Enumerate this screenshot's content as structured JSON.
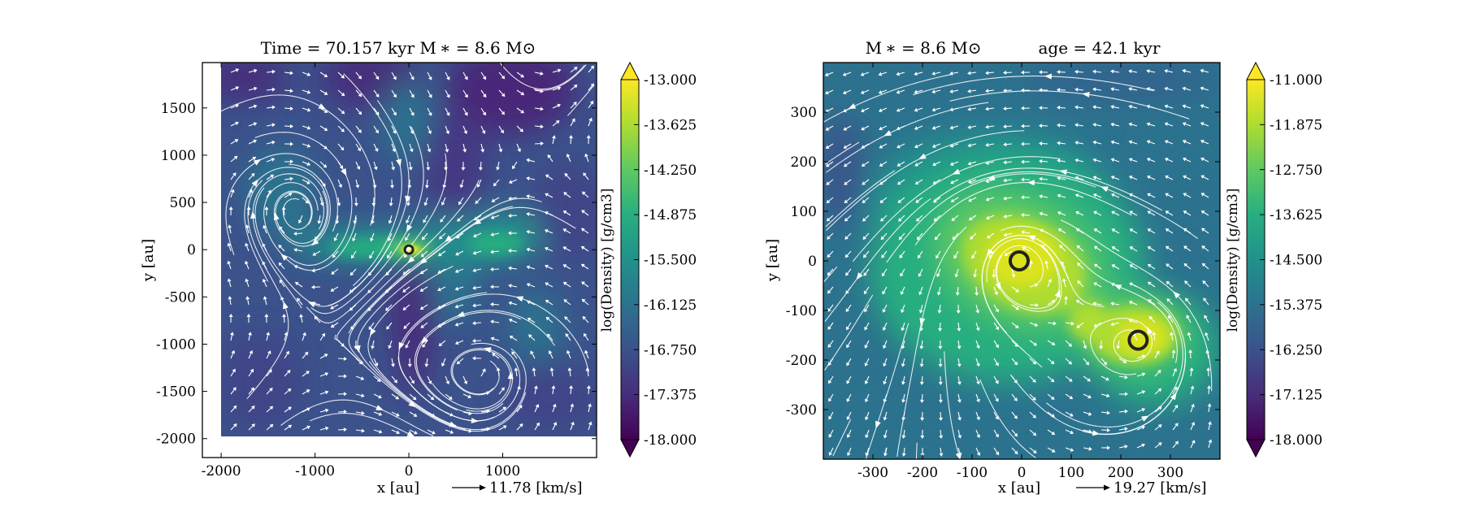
{
  "chart_data": [
    {
      "type": "heatmap",
      "title": "Time = 70.157 kyr    M ∗ = 8.6 M⊙",
      "xlabel": "x [au]",
      "ylabel": "y [au]",
      "xlim": [
        -2200,
        2000
      ],
      "ylim": [
        -2200,
        1980
      ],
      "data_extent": {
        "x": [
          -2000,
          2000
        ],
        "y": [
          -2000,
          1980
        ]
      },
      "xticks": [
        -2000,
        -1000,
        0,
        1000
      ],
      "yticks": [
        1500,
        1000,
        500,
        0,
        -500,
        -1000,
        -1500,
        -2000
      ],
      "colorbar": {
        "label": "log(Density) [g/cm3]",
        "min": -18.0,
        "max": -13.0,
        "ticks": [
          "-13.000",
          "-13.625",
          "-14.250",
          "-14.875",
          "-15.500",
          "-16.125",
          "-16.750",
          "-17.375",
          "-18.000"
        ]
      },
      "vector_key": {
        "text": "11.78 [km/s]"
      },
      "sinks": [
        {
          "x": 0,
          "y": 0
        }
      ]
    },
    {
      "type": "heatmap",
      "title": "M ∗ = 8.6 M⊙           age = 42.1 kyr",
      "xlabel": "x [au]",
      "ylabel": "y [au]",
      "xlim": [
        -400,
        400
      ],
      "ylim": [
        -400,
        400
      ],
      "data_extent": {
        "x": [
          -400,
          400
        ],
        "y": [
          -400,
          400
        ]
      },
      "xticks": [
        -300,
        -200,
        -100,
        0,
        100,
        200,
        300
      ],
      "yticks": [
        300,
        200,
        100,
        0,
        -100,
        -200,
        -300
      ],
      "colorbar": {
        "label": "log(Density) [g/cm3]",
        "min": -18.0,
        "max": -11.0,
        "ticks": [
          "-11.000",
          "-11.875",
          "-12.750",
          "-13.625",
          "-14.500",
          "-15.375",
          "-16.250",
          "-17.125",
          "-18.000"
        ]
      },
      "vector_key": {
        "text": "19.27 [km/s]"
      },
      "sinks": [
        {
          "x": -5,
          "y": 0
        },
        {
          "x": 235,
          "y": -160
        }
      ]
    }
  ]
}
